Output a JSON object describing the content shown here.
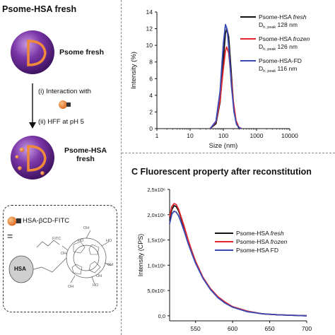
{
  "panel_a": {
    "title": "Psome-HSA fresh",
    "state1_label": "Psome fresh",
    "step1": "(i)  Interaction with",
    "step2": "(ii) HFF at pH 5",
    "state2_label_line1": "Psome-HSA",
    "state2_label_line2": "fresh",
    "legend_label": "HSA-βCD-FITC",
    "equals": "=",
    "hsa": "HSA",
    "chem_labels": [
      "FITC",
      "OH",
      "HO",
      "OH",
      "HO",
      "OH",
      "OH",
      "HO",
      "OH"
    ],
    "colors": {
      "vesicle": "#6b2c91",
      "membrane": "#e8833a",
      "protein": "#e8833a"
    }
  },
  "panel_c_title": "C   Fluorescent property after reconstitution",
  "chart_data": [
    {
      "id": "B",
      "type": "line",
      "xlabel": "Size (nm)",
      "ylabel": "Intensity (%)",
      "xscale": "log",
      "xlim": [
        1,
        10000
      ],
      "ylim": [
        0,
        14
      ],
      "xticks": [
        "1",
        "10",
        "100",
        "1000",
        "10000"
      ],
      "yticks": [
        "0",
        "2",
        "4",
        "6",
        "8",
        "10",
        "12",
        "14"
      ],
      "legend_position": "top-right",
      "series": [
        {
          "name": "Psome-HSA fresh",
          "peak_label": "128 nm",
          "color": "#111111",
          "x": [
            40,
            60,
            80,
            100,
            115,
            128,
            145,
            170,
            200,
            240,
            290,
            350
          ],
          "y": [
            0,
            0.6,
            3.2,
            8.2,
            11.4,
            12.0,
            11.0,
            7.2,
            3.2,
            0.8,
            0.1,
            0
          ]
        },
        {
          "name": "Psome-HSA frozen",
          "peak_label": "126 nm",
          "color": "#e3262d",
          "x": [
            40,
            60,
            80,
            100,
            115,
            126,
            145,
            170,
            200,
            240,
            290,
            350
          ],
          "y": [
            0,
            0.8,
            3.4,
            7.2,
            9.3,
            9.8,
            9.1,
            6.4,
            3.3,
            1.0,
            0.2,
            0
          ]
        },
        {
          "name": "Psome-HSA-FD",
          "peak_label": "116 nm",
          "color": "#3b49b4",
          "x": [
            40,
            60,
            80,
            100,
            116,
            130,
            150,
            175,
            210,
            250,
            300,
            350
          ],
          "y": [
            0,
            0.9,
            4.5,
            10.2,
            12.5,
            11.9,
            9.2,
            5.2,
            2.0,
            0.5,
            0.1,
            0
          ]
        }
      ]
    },
    {
      "id": "C",
      "type": "line",
      "xlabel": "",
      "ylabel": "Intensity (CPS)",
      "xlim": [
        515,
        700
      ],
      "ylim": [
        -0.1,
        2.5
      ],
      "y_multiplier": "×10^6",
      "xticks": [
        "550",
        "600",
        "650",
        "700"
      ],
      "yticks": [
        "0,0",
        "5,0x10⁵",
        "1,0x10⁶",
        "1,5x10⁶",
        "2,0x10⁶",
        "2,5x10⁶"
      ],
      "legend_position": "center-right",
      "series": [
        {
          "name": "Psome-HSA fresh",
          "color": "#111111",
          "x": [
            515,
            518,
            521,
            524,
            527,
            530,
            535,
            540,
            545,
            550,
            560,
            570,
            580,
            590,
            600,
            620,
            640,
            660,
            680,
            700
          ],
          "y": [
            1.88,
            2.1,
            2.18,
            2.16,
            2.08,
            1.95,
            1.72,
            1.48,
            1.26,
            1.06,
            0.75,
            0.53,
            0.37,
            0.26,
            0.18,
            0.09,
            0.04,
            0.02,
            0.01,
            0.0
          ]
        },
        {
          "name": "Psome-HSA frozen",
          "color": "#e3262d",
          "x": [
            515,
            518,
            521,
            524,
            527,
            530,
            535,
            540,
            545,
            550,
            560,
            570,
            580,
            590,
            600,
            620,
            640,
            660,
            680,
            700
          ],
          "y": [
            1.96,
            2.16,
            2.22,
            2.2,
            2.11,
            1.98,
            1.75,
            1.5,
            1.28,
            1.08,
            0.76,
            0.54,
            0.38,
            0.27,
            0.18,
            0.09,
            0.04,
            0.02,
            0.01,
            0.0
          ]
        },
        {
          "name": "Psome-HSA FD",
          "color": "#3b49b4",
          "x": [
            515,
            518,
            521,
            524,
            527,
            530,
            535,
            540,
            545,
            550,
            560,
            570,
            580,
            590,
            600,
            620,
            640,
            660,
            680,
            700
          ],
          "y": [
            1.82,
            2.01,
            2.07,
            2.05,
            1.98,
            1.87,
            1.66,
            1.43,
            1.23,
            1.04,
            0.74,
            0.52,
            0.36,
            0.25,
            0.17,
            0.08,
            0.04,
            0.02,
            0.01,
            0.0
          ]
        }
      ]
    }
  ]
}
